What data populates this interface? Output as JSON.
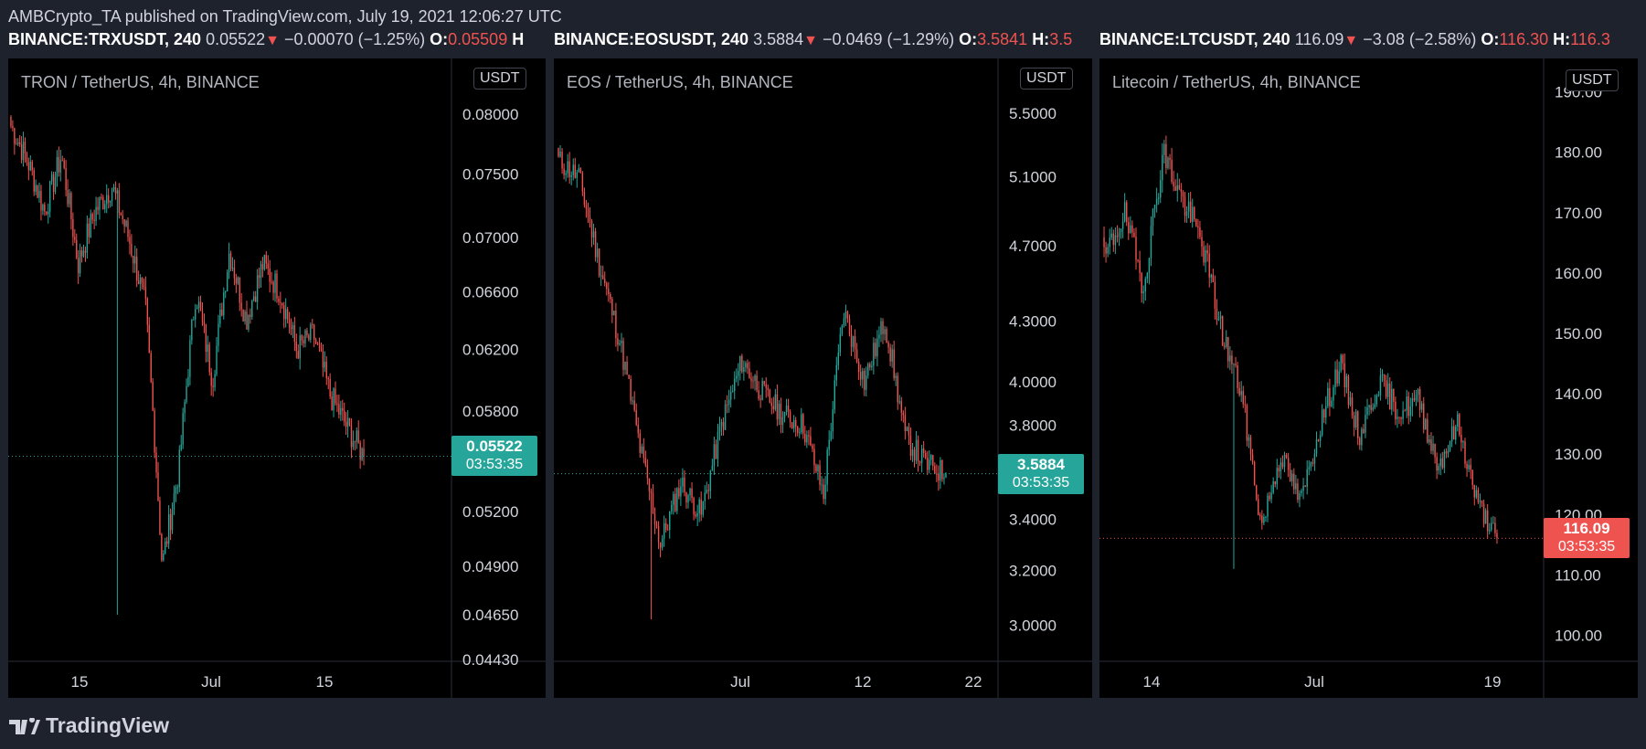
{
  "header": {
    "author": "AMBCrypto_TA",
    "published_text": "published on TradingView.com, July 19, 2021 12:06:27 UTC"
  },
  "tickers": [
    {
      "symbol": "BINANCE:TRXUSDT, 240",
      "last": "0.05522",
      "change": "−0.00070 (−1.25%)",
      "o_label": "O:",
      "open": "0.05509",
      "h_label": "H"
    },
    {
      "symbol": "BINANCE:EOSUSDT, 240",
      "last": "3.5884",
      "change": "−0.0469 (−1.29%)",
      "o_label": "O:",
      "open": "3.5841",
      "h_label": "H:",
      "high": "3.5"
    },
    {
      "symbol": "BINANCE:LTCUSDT, 240",
      "last": "116.09",
      "change": "−3.08 (−2.58%)",
      "o_label": "O:",
      "open": "116.30",
      "h_label": "H:",
      "high": "116.3"
    }
  ],
  "footer": {
    "brand": "TradingView"
  },
  "colors": {
    "up": "#26a69a",
    "down": "#ef5350",
    "bg": "#000000",
    "frame": "#1e222d"
  },
  "chart_data": [
    {
      "type": "candlestick",
      "title": "TRON / TetherUS, 4h, BINANCE",
      "unit": "USDT",
      "scale": "log",
      "ylim": [
        0.0443,
        0.0825
      ],
      "y_ticks": [
        "0.08000",
        "0.07500",
        "0.07000",
        "0.06600",
        "0.06200",
        "0.05800",
        "0.05200",
        "0.04900",
        "0.04650",
        "0.04430"
      ],
      "x_ticks": [
        "15",
        "Jul",
        "15"
      ],
      "last_price": "0.05522",
      "countdown": "03:53:35",
      "last_color": "#26a69a",
      "anchors": [
        0.079,
        0.076,
        0.072,
        0.0765,
        0.068,
        0.072,
        0.074,
        0.07,
        0.065,
        0.049,
        0.0545,
        0.066,
        0.06,
        0.069,
        0.064,
        0.068,
        0.066,
        0.062,
        0.063,
        0.059,
        0.057,
        0.0552
      ],
      "spikes": [
        {
          "at": 0.3,
          "low": 0.0465
        }
      ]
    },
    {
      "type": "candlestick",
      "title": "EOS / TetherUS, 4h, BINANCE",
      "unit": "USDT",
      "scale": "log",
      "ylim": [
        2.88,
        5.68
      ],
      "y_ticks": [
        "5.5000",
        "5.1000",
        "4.7000",
        "4.3000",
        "4.0000",
        "3.8000",
        "3.4000",
        "3.2000",
        "3.0000"
      ],
      "x_ticks": [
        "Jul",
        "12",
        "22"
      ],
      "last_price": "3.5884",
      "countdown": "03:53:35",
      "last_color": "#26a69a",
      "anchors": [
        5.2,
        5.1,
        4.6,
        4.2,
        3.7,
        3.3,
        3.55,
        3.42,
        3.8,
        4.1,
        3.95,
        3.85,
        3.8,
        3.5,
        4.35,
        4.0,
        4.3,
        3.75,
        3.63,
        3.5884
      ],
      "spikes": [
        {
          "at": 0.24,
          "low": 3.02
        }
      ]
    },
    {
      "type": "candlestick",
      "title": "Litecoin / TetherUS, 4h, BINANCE",
      "unit": "USDT",
      "scale": "linear",
      "ylim": [
        96,
        191
      ],
      "y_ticks": [
        "190.00",
        "180.00",
        "170.00",
        "160.00",
        "150.00",
        "140.00",
        "130.00",
        "120.00",
        "110.00",
        "100.00"
      ],
      "x_ticks": [
        "14",
        "Jul",
        "19"
      ],
      "last_price": "116.09",
      "countdown": "03:53:35",
      "last_color": "#ef5350",
      "anchors": [
        162,
        170,
        158,
        180,
        172,
        165,
        150,
        140,
        118,
        130,
        122,
        135,
        145,
        133,
        142,
        137,
        139,
        128,
        135,
        122,
        116.09
      ],
      "spikes": [
        {
          "at": 0.33,
          "low": 111
        }
      ]
    }
  ]
}
